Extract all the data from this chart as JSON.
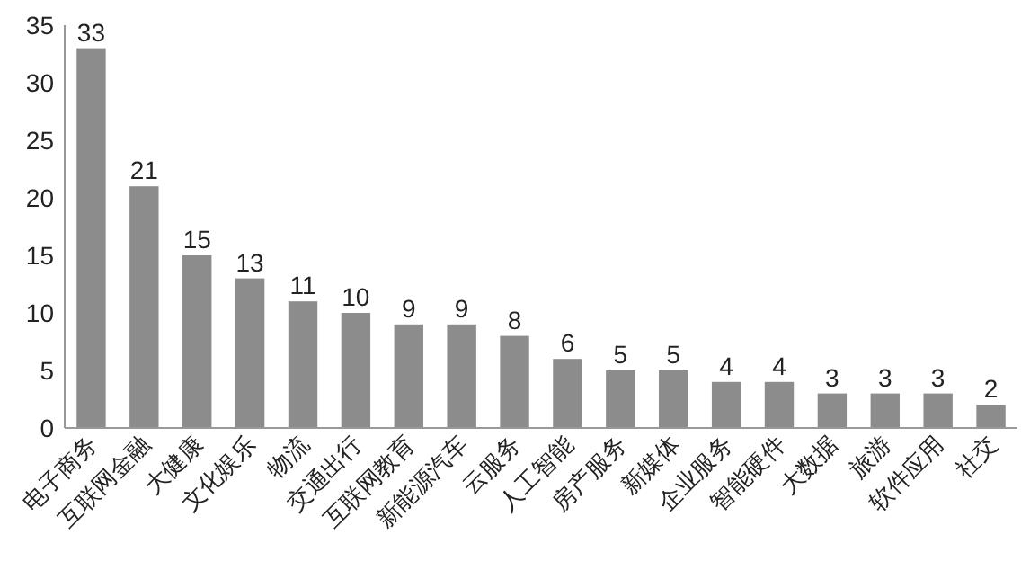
{
  "chart_data": {
    "type": "bar",
    "categories": [
      "电子商务",
      "互联网金融",
      "大健康",
      "文化娱乐",
      "物流",
      "交通出行",
      "互联网教育",
      "新能源汽车",
      "云服务",
      "人工智能",
      "房产服务",
      "新媒体",
      "企业服务",
      "智能硬件",
      "大数据",
      "旅游",
      "软件应用",
      "社交"
    ],
    "values": [
      33,
      21,
      15,
      13,
      11,
      10,
      9,
      9,
      8,
      6,
      5,
      5,
      4,
      4,
      3,
      3,
      3,
      2
    ],
    "color": "#8c8c8c",
    "ylim": [
      0,
      35
    ],
    "yticks": [
      0,
      5,
      10,
      15,
      20,
      25,
      30,
      35
    ],
    "data_labels": true,
    "grid": false
  }
}
